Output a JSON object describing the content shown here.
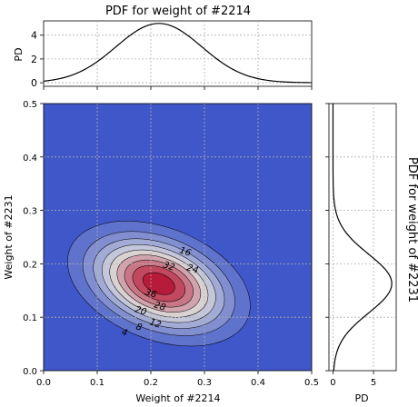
{
  "chart_data": [
    {
      "type": "line",
      "panel": "top-marginal",
      "title": "PDF for weight of #2214",
      "xlabel": "",
      "ylabel": "PD",
      "xlim": [
        0.0,
        0.5
      ],
      "ylim": [
        -0.3,
        5.2
      ],
      "yticks": [
        "0",
        "2",
        "4"
      ],
      "distribution": {
        "mean": 0.215,
        "sd": 0.08
      },
      "grid": true
    },
    {
      "type": "heatmap",
      "panel": "joint-contour",
      "title": "",
      "xlabel": "Weight of #2214",
      "ylabel": "Weight of #2231",
      "xlim": [
        0.0,
        0.5
      ],
      "ylim": [
        0.0,
        0.5
      ],
      "xticks": [
        "0.0",
        "0.1",
        "0.2",
        "0.3",
        "0.4",
        "0.5"
      ],
      "yticks": [
        "0.0",
        "0.1",
        "0.2",
        "0.3",
        "0.4",
        "0.5"
      ],
      "center": [
        0.215,
        0.163
      ],
      "sd": [
        0.08,
        0.055
      ],
      "correlation": -0.35,
      "levels": [
        4,
        8,
        12,
        16,
        20,
        24,
        28,
        32,
        36,
        40,
        44,
        48
      ],
      "contour_labels": [
        "16",
        "32",
        "24",
        "36",
        "28",
        "20",
        "12",
        "8",
        "4"
      ],
      "colors": {
        "low": "#3f57c8",
        "mid": "#dcdcdc",
        "high": "#b40426"
      },
      "grid": true
    },
    {
      "type": "line",
      "panel": "right-marginal",
      "title": "PDF for weight of #2231",
      "xlabel": "PD",
      "ylabel": "",
      "xlim": [
        -0.5,
        7.8
      ],
      "ylim": [
        0.0,
        0.5
      ],
      "xticks": [
        "0",
        "5"
      ],
      "distribution": {
        "mean": 0.163,
        "sd": 0.055
      },
      "grid": true
    }
  ]
}
